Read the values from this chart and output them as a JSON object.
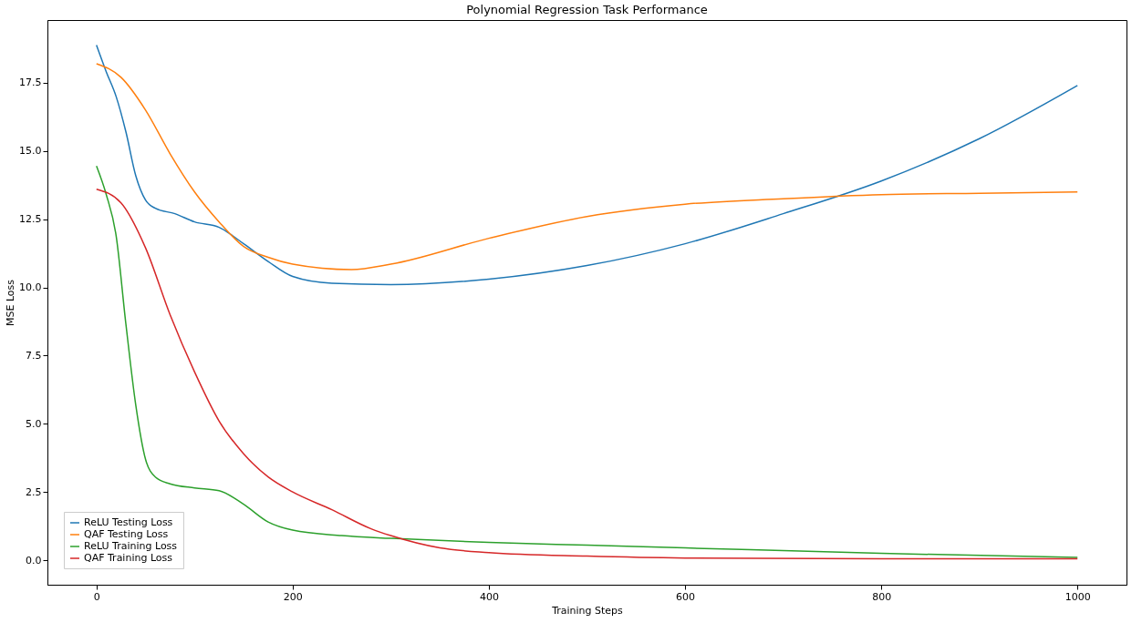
{
  "chart_data": {
    "type": "line",
    "title": "Polynomial Regression Task Performance",
    "xlabel": "Training Steps",
    "ylabel": "MSE Loss",
    "xlim": [
      -50,
      1050
    ],
    "ylim": [
      -0.9,
      19.8
    ],
    "xticks": [
      0,
      200,
      400,
      600,
      800,
      1000
    ],
    "yticks": [
      {
        "value": 0,
        "label": "0.0"
      },
      {
        "value": 2.5,
        "label": "2.5"
      },
      {
        "value": 5,
        "label": "5.0"
      },
      {
        "value": 7.5,
        "label": "7.5"
      },
      {
        "value": 10,
        "label": "10.0"
      },
      {
        "value": 12.5,
        "label": "12.5"
      },
      {
        "value": 15,
        "label": "15.0"
      },
      {
        "value": 17.5,
        "label": "17.5"
      }
    ],
    "grid": false,
    "legend": "bottom left",
    "marker": "none",
    "line_style": "solid",
    "series": [
      {
        "name": "ReLU Testing Loss",
        "color": "#1f77b4",
        "x": [
          0,
          10,
          20,
          30,
          40,
          50,
          60,
          80,
          100,
          125,
          150,
          175,
          200,
          240,
          300,
          400,
          500,
          600,
          700,
          800,
          900,
          1000
        ],
        "values": [
          18.88,
          17.9,
          17.0,
          15.7,
          14.1,
          13.2,
          12.9,
          12.7,
          12.4,
          12.2,
          11.6,
          10.95,
          10.4,
          10.15,
          10.1,
          10.3,
          10.8,
          11.6,
          12.7,
          13.9,
          15.45,
          17.4
        ]
      },
      {
        "name": "QAF Testing Loss",
        "color": "#ff7f0e",
        "x": [
          0,
          25,
          50,
          75,
          100,
          125,
          150,
          175,
          200,
          260,
          300,
          400,
          500,
          600,
          700,
          800,
          900,
          1000
        ],
        "values": [
          18.2,
          17.7,
          16.5,
          14.9,
          13.5,
          12.4,
          11.5,
          11.1,
          10.85,
          10.65,
          10.85,
          11.8,
          12.6,
          13.05,
          13.25,
          13.4,
          13.45,
          13.5
        ]
      },
      {
        "name": "ReLU Training Loss",
        "color": "#2ca02c",
        "x": [
          0,
          10,
          20,
          30,
          40,
          50,
          60,
          75,
          100,
          125,
          150,
          175,
          200,
          250,
          300,
          400,
          500,
          600,
          800,
          1000
        ],
        "values": [
          14.45,
          13.4,
          11.9,
          8.65,
          5.7,
          3.7,
          3.05,
          2.8,
          2.65,
          2.55,
          2.05,
          1.4,
          1.1,
          0.9,
          0.8,
          0.65,
          0.55,
          0.45,
          0.25,
          0.1
        ]
      },
      {
        "name": "QAF Training Loss",
        "color": "#d62728",
        "x": [
          0,
          25,
          50,
          75,
          100,
          125,
          150,
          175,
          200,
          240,
          280,
          300,
          350,
          400,
          500,
          600,
          800,
          1000
        ],
        "values": [
          13.6,
          13.1,
          11.45,
          9.0,
          6.9,
          5.1,
          3.9,
          3.05,
          2.5,
          1.85,
          1.15,
          0.9,
          0.45,
          0.28,
          0.15,
          0.08,
          0.05,
          0.05
        ]
      }
    ]
  }
}
